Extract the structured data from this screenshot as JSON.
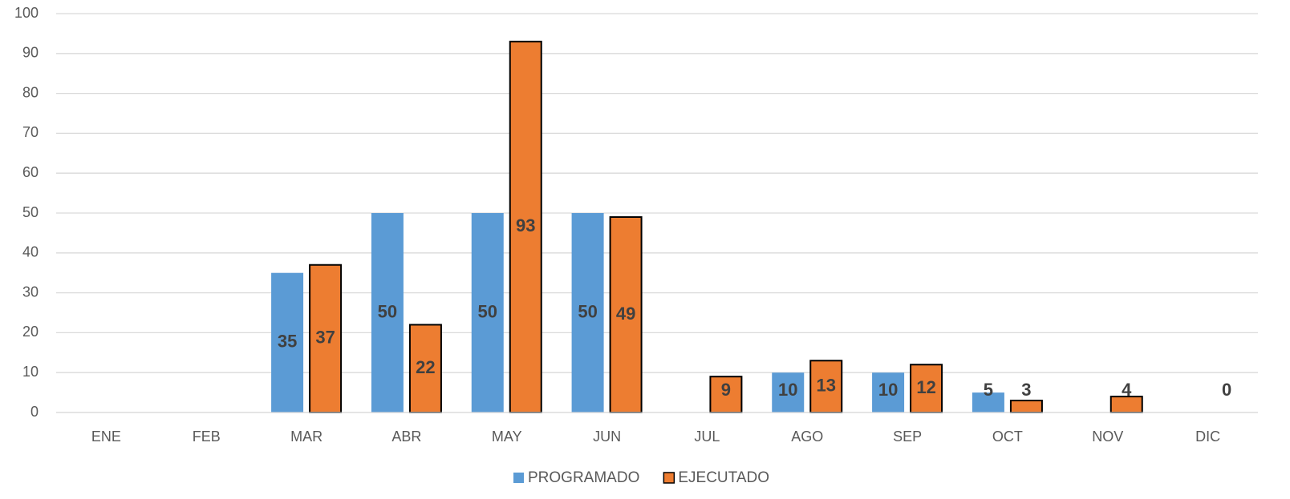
{
  "chart_data": {
    "type": "bar",
    "categories": [
      "ENE",
      "FEB",
      "MAR",
      "ABR",
      "MAY",
      "JUN",
      "JUL",
      "AGO",
      "SEP",
      "OCT",
      "NOV",
      "DIC"
    ],
    "series": [
      {
        "name": "PROGRAMADO",
        "color": "#5b9bd5",
        "values": [
          null,
          null,
          35,
          50,
          50,
          50,
          null,
          10,
          10,
          5,
          null,
          null
        ]
      },
      {
        "name": "EJECUTADO",
        "color": "#ed7d31",
        "values": [
          null,
          null,
          37,
          22,
          93,
          49,
          9,
          13,
          12,
          3,
          4,
          0
        ]
      }
    ],
    "ylim": [
      0,
      100
    ],
    "yticks": [
      0,
      10,
      20,
      30,
      40,
      50,
      60,
      70,
      80,
      90,
      100
    ],
    "grid": true,
    "legend": "bottom"
  }
}
